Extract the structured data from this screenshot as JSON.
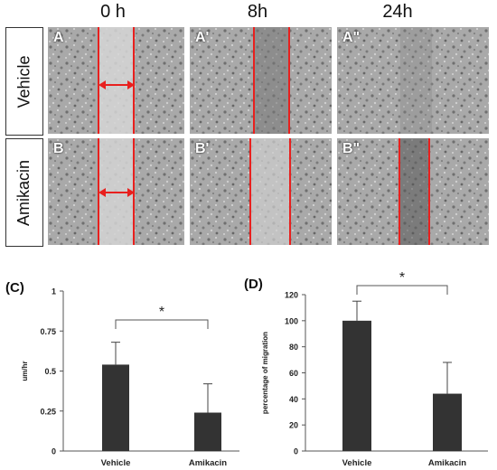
{
  "figure": {
    "columns": [
      "0 h",
      "8h",
      "24h"
    ],
    "rows": [
      "Vehicle",
      "Amikacin"
    ],
    "panels": [
      [
        "A",
        "A'",
        "A\""
      ],
      [
        "B",
        "B'",
        "B\""
      ]
    ],
    "colors": {
      "line": "#e8201e",
      "bar": "#333333",
      "panel_bg": "#a9a9a9"
    }
  },
  "chart_data": [
    {
      "type": "bar",
      "panel_label": "(C)",
      "categories": [
        "Vehicle",
        "Amikacin"
      ],
      "values": [
        0.54,
        0.24
      ],
      "errors": [
        0.14,
        0.18
      ],
      "ylabel": "um/hr",
      "ylim": [
        0,
        1
      ],
      "yticks": [
        "0",
        "0.25",
        "0.5",
        "0.75",
        "1"
      ],
      "annotation": "*"
    },
    {
      "type": "bar",
      "panel_label": "(D)",
      "categories": [
        "Vehicle",
        "Amikacin"
      ],
      "values": [
        100,
        44
      ],
      "errors": [
        15,
        24
      ],
      "ylabel": "percentage of migration",
      "ylim": [
        0,
        120
      ],
      "yticks": [
        "0",
        "20",
        "40",
        "60",
        "80",
        "100",
        "120"
      ],
      "annotation": "*"
    }
  ]
}
